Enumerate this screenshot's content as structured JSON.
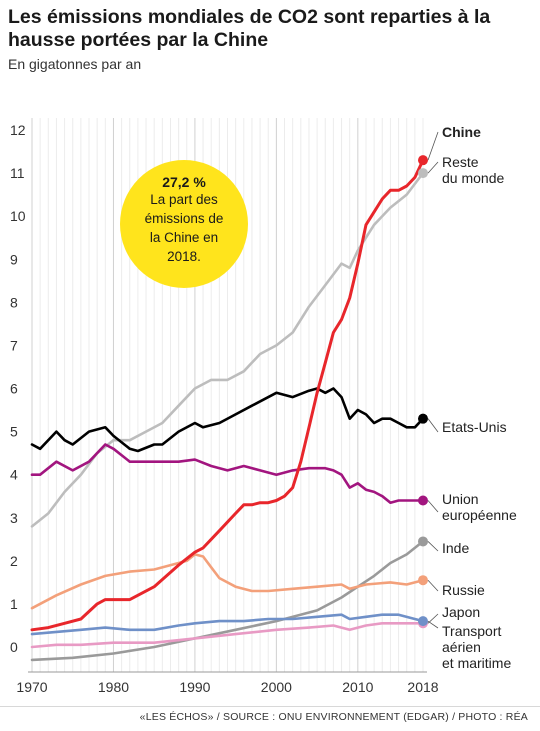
{
  "header": {
    "title": "Les émissions mondiales de CO2 sont reparties à la hausse portées par la Chine",
    "subtitle": "En gigatonnes par an"
  },
  "callout": {
    "value": "27,2 %",
    "text": "La part des émissions de la Chine en 2018."
  },
  "footer": {
    "credit": "«LES ÉCHOS» / SOURCE : ONU ENVIRONNEMENT (EDGAR) / PHOTO : RÉA"
  },
  "chart_data": {
    "type": "line",
    "title": "Les émissions mondiales de CO2 sont reparties à la hausse portées par la Chine",
    "subtitle": "En gigatonnes par an",
    "xlim": [
      1970,
      2018
    ],
    "ylim": [
      -0.4,
      12
    ],
    "x_ticks": [
      1970,
      1980,
      1990,
      2000,
      2010,
      2018
    ],
    "y_ticks": [
      0,
      1,
      2,
      3,
      4,
      5,
      6,
      7,
      8,
      9,
      10,
      11,
      12
    ],
    "grid": "vertical",
    "legend": "direct labels at right end of lines",
    "series": [
      {
        "name": "Chine",
        "color": "#e8262b",
        "points": [
          [
            1970,
            0.4
          ],
          [
            1972,
            0.45
          ],
          [
            1974,
            0.55
          ],
          [
            1976,
            0.65
          ],
          [
            1978,
            1.0
          ],
          [
            1979,
            1.1
          ],
          [
            1982,
            1.1
          ],
          [
            1985,
            1.4
          ],
          [
            1988,
            1.9
          ],
          [
            1990,
            2.2
          ],
          [
            1991,
            2.3
          ],
          [
            1993,
            2.7
          ],
          [
            1995,
            3.1
          ],
          [
            1996,
            3.3
          ],
          [
            1997,
            3.3
          ],
          [
            1998,
            3.35
          ],
          [
            1999,
            3.35
          ],
          [
            2000,
            3.4
          ],
          [
            2001,
            3.5
          ],
          [
            2002,
            3.7
          ],
          [
            2003,
            4.3
          ],
          [
            2004,
            5.1
          ],
          [
            2005,
            5.9
          ],
          [
            2006,
            6.6
          ],
          [
            2007,
            7.3
          ],
          [
            2008,
            7.6
          ],
          [
            2009,
            8.1
          ],
          [
            2010,
            8.9
          ],
          [
            2011,
            9.8
          ],
          [
            2012,
            10.1
          ],
          [
            2013,
            10.4
          ],
          [
            2014,
            10.6
          ],
          [
            2015,
            10.6
          ],
          [
            2016,
            10.7
          ],
          [
            2017,
            10.9
          ],
          [
            2018,
            11.3
          ]
        ]
      },
      {
        "name": "Reste du monde",
        "color": "#bdbdbd",
        "points": [
          [
            1970,
            2.8
          ],
          [
            1972,
            3.1
          ],
          [
            1974,
            3.6
          ],
          [
            1976,
            4.0
          ],
          [
            1978,
            4.5
          ],
          [
            1980,
            4.8
          ],
          [
            1982,
            4.8
          ],
          [
            1984,
            5.0
          ],
          [
            1986,
            5.2
          ],
          [
            1988,
            5.6
          ],
          [
            1990,
            6.0
          ],
          [
            1992,
            6.2
          ],
          [
            1994,
            6.2
          ],
          [
            1996,
            6.4
          ],
          [
            1998,
            6.8
          ],
          [
            2000,
            7.0
          ],
          [
            2002,
            7.3
          ],
          [
            2004,
            7.9
          ],
          [
            2006,
            8.4
          ],
          [
            2008,
            8.9
          ],
          [
            2009,
            8.8
          ],
          [
            2010,
            9.2
          ],
          [
            2012,
            9.8
          ],
          [
            2014,
            10.2
          ],
          [
            2016,
            10.5
          ],
          [
            2018,
            11.0
          ]
        ]
      },
      {
        "name": "Etats-Unis",
        "color": "#000000",
        "points": [
          [
            1970,
            4.7
          ],
          [
            1971,
            4.6
          ],
          [
            1973,
            5.0
          ],
          [
            1974,
            4.8
          ],
          [
            1975,
            4.7
          ],
          [
            1977,
            5.0
          ],
          [
            1979,
            5.1
          ],
          [
            1980,
            4.9
          ],
          [
            1982,
            4.6
          ],
          [
            1983,
            4.55
          ],
          [
            1985,
            4.7
          ],
          [
            1986,
            4.7
          ],
          [
            1988,
            5.0
          ],
          [
            1990,
            5.2
          ],
          [
            1991,
            5.1
          ],
          [
            1993,
            5.2
          ],
          [
            1995,
            5.4
          ],
          [
            1997,
            5.6
          ],
          [
            2000,
            5.9
          ],
          [
            2002,
            5.8
          ],
          [
            2004,
            5.95
          ],
          [
            2005,
            6.0
          ],
          [
            2006,
            5.9
          ],
          [
            2007,
            6.0
          ],
          [
            2008,
            5.8
          ],
          [
            2009,
            5.3
          ],
          [
            2010,
            5.5
          ],
          [
            2011,
            5.4
          ],
          [
            2012,
            5.2
          ],
          [
            2013,
            5.3
          ],
          [
            2014,
            5.3
          ],
          [
            2015,
            5.2
          ],
          [
            2016,
            5.1
          ],
          [
            2017,
            5.1
          ],
          [
            2018,
            5.3
          ]
        ]
      },
      {
        "name": "Union européenne",
        "color": "#a2157f",
        "points": [
          [
            1970,
            4.0
          ],
          [
            1971,
            4.0
          ],
          [
            1973,
            4.3
          ],
          [
            1975,
            4.1
          ],
          [
            1977,
            4.3
          ],
          [
            1979,
            4.7
          ],
          [
            1980,
            4.6
          ],
          [
            1982,
            4.3
          ],
          [
            1985,
            4.3
          ],
          [
            1988,
            4.3
          ],
          [
            1990,
            4.35
          ],
          [
            1992,
            4.2
          ],
          [
            1994,
            4.1
          ],
          [
            1996,
            4.2
          ],
          [
            1998,
            4.1
          ],
          [
            2000,
            4.0
          ],
          [
            2002,
            4.1
          ],
          [
            2004,
            4.15
          ],
          [
            2006,
            4.15
          ],
          [
            2007,
            4.1
          ],
          [
            2008,
            4.0
          ],
          [
            2009,
            3.7
          ],
          [
            2010,
            3.8
          ],
          [
            2011,
            3.65
          ],
          [
            2012,
            3.6
          ],
          [
            2013,
            3.5
          ],
          [
            2014,
            3.35
          ],
          [
            2015,
            3.4
          ],
          [
            2016,
            3.4
          ],
          [
            2017,
            3.4
          ],
          [
            2018,
            3.4
          ]
        ]
      },
      {
        "name": "Inde",
        "color": "#9a9a9a",
        "points": [
          [
            1970,
            -0.3
          ],
          [
            1975,
            -0.25
          ],
          [
            1980,
            -0.15
          ],
          [
            1985,
            0.0
          ],
          [
            1990,
            0.2
          ],
          [
            1995,
            0.4
          ],
          [
            2000,
            0.6
          ],
          [
            2005,
            0.85
          ],
          [
            2008,
            1.15
          ],
          [
            2010,
            1.4
          ],
          [
            2012,
            1.65
          ],
          [
            2014,
            1.95
          ],
          [
            2016,
            2.15
          ],
          [
            2018,
            2.45
          ]
        ]
      },
      {
        "name": "Russie",
        "color": "#f3a07a",
        "points": [
          [
            1970,
            0.9
          ],
          [
            1973,
            1.2
          ],
          [
            1976,
            1.45
          ],
          [
            1979,
            1.65
          ],
          [
            1982,
            1.75
          ],
          [
            1985,
            1.8
          ],
          [
            1988,
            1.95
          ],
          [
            1989,
            2.0
          ],
          [
            1990,
            2.15
          ],
          [
            1991,
            2.1
          ],
          [
            1992,
            1.85
          ],
          [
            1993,
            1.6
          ],
          [
            1995,
            1.4
          ],
          [
            1997,
            1.3
          ],
          [
            1999,
            1.3
          ],
          [
            2002,
            1.35
          ],
          [
            2005,
            1.4
          ],
          [
            2008,
            1.45
          ],
          [
            2009,
            1.35
          ],
          [
            2011,
            1.45
          ],
          [
            2014,
            1.5
          ],
          [
            2016,
            1.45
          ],
          [
            2018,
            1.55
          ]
        ]
      },
      {
        "name": "Japon",
        "color": "#e89ac4",
        "points": [
          [
            1970,
            0.0
          ],
          [
            1973,
            0.05
          ],
          [
            1976,
            0.05
          ],
          [
            1980,
            0.1
          ],
          [
            1985,
            0.1
          ],
          [
            1990,
            0.2
          ],
          [
            1995,
            0.3
          ],
          [
            2000,
            0.4
          ],
          [
            2004,
            0.45
          ],
          [
            2007,
            0.5
          ],
          [
            2008,
            0.45
          ],
          [
            2009,
            0.4
          ],
          [
            2011,
            0.5
          ],
          [
            2013,
            0.55
          ],
          [
            2015,
            0.55
          ],
          [
            2018,
            0.55
          ]
        ]
      },
      {
        "name": "Transport aérien et maritime",
        "color": "#6f90c8",
        "points": [
          [
            1970,
            0.3
          ],
          [
            1973,
            0.35
          ],
          [
            1976,
            0.4
          ],
          [
            1979,
            0.45
          ],
          [
            1982,
            0.4
          ],
          [
            1985,
            0.4
          ],
          [
            1988,
            0.5
          ],
          [
            1990,
            0.55
          ],
          [
            1993,
            0.6
          ],
          [
            1996,
            0.6
          ],
          [
            1999,
            0.65
          ],
          [
            2002,
            0.65
          ],
          [
            2005,
            0.7
          ],
          [
            2008,
            0.75
          ],
          [
            2009,
            0.65
          ],
          [
            2011,
            0.7
          ],
          [
            2013,
            0.75
          ],
          [
            2015,
            0.75
          ],
          [
            2018,
            0.6
          ]
        ]
      }
    ],
    "labels": [
      {
        "text": "Chine",
        "bold": true,
        "lines": [
          "Chine"
        ]
      },
      {
        "text": "Reste du monde",
        "bold": false,
        "lines": [
          "Reste",
          "du monde"
        ]
      },
      {
        "text": "Etats-Unis",
        "bold": false,
        "lines": [
          "Etats-Unis"
        ]
      },
      {
        "text": "Union européenne",
        "bold": false,
        "lines": [
          "Union",
          "européenne"
        ]
      },
      {
        "text": "Inde",
        "bold": false,
        "lines": [
          "Inde"
        ]
      },
      {
        "text": "Russie",
        "bold": false,
        "lines": [
          "Russie"
        ]
      },
      {
        "text": "Japon",
        "bold": false,
        "lines": [
          "Japon"
        ]
      },
      {
        "text": "Transport aérien et maritime",
        "bold": false,
        "lines": [
          "Transport",
          "aérien",
          "et maritime"
        ]
      }
    ]
  }
}
